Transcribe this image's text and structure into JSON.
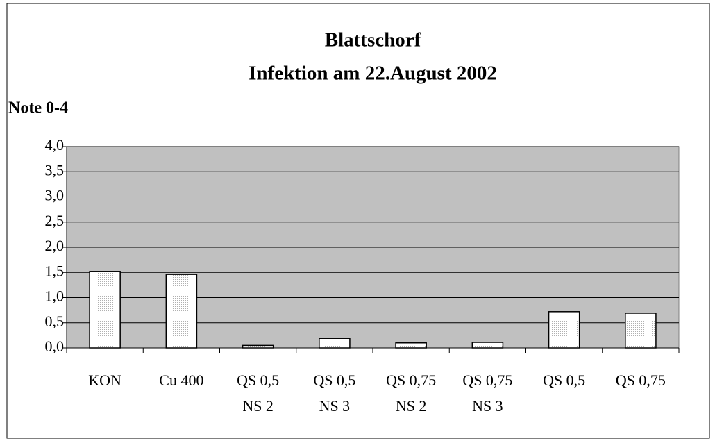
{
  "chart_data": {
    "type": "bar",
    "title": "Blattschorf",
    "subtitle": "Infektion am 22.August 2002",
    "y_label": "Note 0-4",
    "categories": [
      [
        "KON"
      ],
      [
        "Cu 400"
      ],
      [
        "QS 0,5",
        "NS 2"
      ],
      [
        "QS 0,5",
        "NS 3"
      ],
      [
        "QS 0,75",
        "NS 2"
      ],
      [
        "QS 0,75",
        "NS 3"
      ],
      [
        "QS 0,5"
      ],
      [
        "QS 0,75"
      ]
    ],
    "values": [
      1.52,
      1.46,
      0.05,
      0.19,
      0.1,
      0.11,
      0.72,
      0.69
    ],
    "color": "#ececec",
    "plot_background": "#c0c0c0",
    "ylim": [
      0,
      4
    ],
    "yticks": [
      {
        "value": 0,
        "label": "0,0"
      },
      {
        "value": 0.5,
        "label": "0,5"
      },
      {
        "value": 1,
        "label": "1,0"
      },
      {
        "value": 1.5,
        "label": "1,5"
      },
      {
        "value": 2,
        "label": "2,0"
      },
      {
        "value": 2.5,
        "label": "2,5"
      },
      {
        "value": 3,
        "label": "3,0"
      },
      {
        "value": 3.5,
        "label": "3,5"
      },
      {
        "value": 4,
        "label": "4,0"
      }
    ],
    "grid": true
  }
}
